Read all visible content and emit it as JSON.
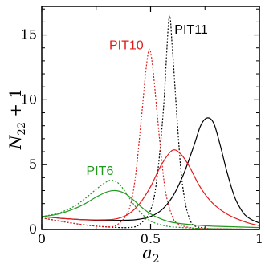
{
  "chart_data": {
    "type": "line",
    "title": "",
    "xlabel": "a2",
    "ylabel": "N22 + 1",
    "xlim": [
      0,
      1
    ],
    "ylim": [
      0,
      17.2
    ],
    "xticks": [
      {
        "value": 0,
        "label": "0"
      },
      {
        "value": 0.5,
        "label": "0.5"
      },
      {
        "value": 1,
        "label": "1"
      }
    ],
    "yticks": [
      {
        "value": 0,
        "label": "0"
      },
      {
        "value": 5,
        "label": "5"
      },
      {
        "value": 10,
        "label": "10"
      },
      {
        "value": 15,
        "label": "15"
      }
    ],
    "grid": false,
    "legend": "none",
    "series": [
      {
        "name": "PIT11",
        "color": "#000000",
        "style": "solid",
        "points": [
          [
            0,
            1.0
          ],
          [
            0.1,
            0.85
          ],
          [
            0.2,
            0.75
          ],
          [
            0.3,
            0.7
          ],
          [
            0.4,
            0.72
          ],
          [
            0.45,
            0.8
          ],
          [
            0.5,
            1.0
          ],
          [
            0.55,
            1.5
          ],
          [
            0.6,
            2.5
          ],
          [
            0.65,
            4.2
          ],
          [
            0.7,
            6.5
          ],
          [
            0.73,
            8.0
          ],
          [
            0.76,
            8.6
          ],
          [
            0.79,
            8.2
          ],
          [
            0.82,
            6.5
          ],
          [
            0.85,
            4.5
          ],
          [
            0.88,
            2.8
          ],
          [
            0.9,
            2.0
          ],
          [
            0.93,
            1.2
          ],
          [
            0.96,
            0.8
          ],
          [
            1.0,
            0.5
          ]
        ]
      },
      {
        "name": "PIT11",
        "color": "#000000",
        "style": "dotted",
        "points": [
          [
            0,
            0.9
          ],
          [
            0.1,
            0.6
          ],
          [
            0.2,
            0.35
          ],
          [
            0.3,
            0.2
          ],
          [
            0.4,
            0.15
          ],
          [
            0.45,
            0.4
          ],
          [
            0.5,
            1.5
          ],
          [
            0.53,
            4.0
          ],
          [
            0.56,
            9.5
          ],
          [
            0.585,
            16.3
          ],
          [
            0.6,
            14.0
          ],
          [
            0.62,
            9.0
          ],
          [
            0.64,
            4.5
          ],
          [
            0.66,
            2.0
          ],
          [
            0.68,
            0.8
          ],
          [
            0.7,
            0.3
          ],
          [
            0.75,
            0.1
          ],
          [
            0.8,
            0.05
          ],
          [
            1.0,
            0.02
          ]
        ]
      },
      {
        "name": "PIT10",
        "color": "#e31a1a",
        "style": "solid",
        "points": [
          [
            0,
            1.0
          ],
          [
            0.1,
            0.85
          ],
          [
            0.2,
            0.75
          ],
          [
            0.3,
            0.75
          ],
          [
            0.35,
            0.85
          ],
          [
            0.4,
            1.2
          ],
          [
            0.45,
            2.0
          ],
          [
            0.5,
            3.3
          ],
          [
            0.55,
            5.0
          ],
          [
            0.6,
            6.1
          ],
          [
            0.64,
            5.8
          ],
          [
            0.68,
            4.8
          ],
          [
            0.72,
            3.5
          ],
          [
            0.76,
            2.5
          ],
          [
            0.8,
            1.8
          ],
          [
            0.85,
            1.2
          ],
          [
            0.9,
            0.8
          ],
          [
            0.95,
            0.5
          ],
          [
            1.0,
            0.3
          ]
        ]
      },
      {
        "name": "PIT10",
        "color": "#e31a1a",
        "style": "dotted",
        "points": [
          [
            0,
            0.9
          ],
          [
            0.1,
            0.6
          ],
          [
            0.2,
            0.35
          ],
          [
            0.3,
            0.2
          ],
          [
            0.35,
            0.4
          ],
          [
            0.4,
            1.5
          ],
          [
            0.43,
            4.0
          ],
          [
            0.46,
            9.0
          ],
          [
            0.48,
            12.5
          ],
          [
            0.495,
            13.9
          ],
          [
            0.51,
            12.5
          ],
          [
            0.53,
            9.0
          ],
          [
            0.55,
            5.5
          ],
          [
            0.57,
            2.8
          ],
          [
            0.6,
            1.0
          ],
          [
            0.63,
            0.4
          ],
          [
            0.7,
            0.1
          ],
          [
            0.8,
            0.05
          ],
          [
            1.0,
            0.02
          ]
        ]
      },
      {
        "name": "PIT6",
        "color": "#1f9a1f",
        "style": "solid",
        "points": [
          [
            0,
            1.0
          ],
          [
            0.05,
            1.1
          ],
          [
            0.1,
            1.3
          ],
          [
            0.15,
            1.6
          ],
          [
            0.2,
            2.0
          ],
          [
            0.25,
            2.5
          ],
          [
            0.3,
            2.9
          ],
          [
            0.34,
            3.0
          ],
          [
            0.38,
            2.8
          ],
          [
            0.42,
            2.3
          ],
          [
            0.46,
            1.7
          ],
          [
            0.5,
            1.2
          ],
          [
            0.55,
            0.8
          ],
          [
            0.6,
            0.55
          ],
          [
            0.7,
            0.35
          ],
          [
            0.8,
            0.25
          ],
          [
            1.0,
            0.15
          ]
        ]
      },
      {
        "name": "PIT6",
        "color": "#1f9a1f",
        "style": "dotted",
        "points": [
          [
            0,
            1.0
          ],
          [
            0.05,
            1.15
          ],
          [
            0.1,
            1.4
          ],
          [
            0.15,
            1.8
          ],
          [
            0.2,
            2.4
          ],
          [
            0.25,
            3.1
          ],
          [
            0.29,
            3.6
          ],
          [
            0.32,
            3.8
          ],
          [
            0.35,
            3.6
          ],
          [
            0.38,
            3.0
          ],
          [
            0.42,
            2.0
          ],
          [
            0.46,
            1.2
          ],
          [
            0.5,
            0.65
          ],
          [
            0.55,
            0.35
          ],
          [
            0.6,
            0.2
          ],
          [
            0.7,
            0.1
          ],
          [
            0.8,
            0.05
          ],
          [
            1.0,
            0.02
          ]
        ]
      }
    ],
    "annotations": [
      {
        "text": "PIT11",
        "color": "#000000",
        "x": 0.61,
        "y": 15.1
      },
      {
        "text": "PIT10",
        "color": "#e31a1a",
        "x": 0.31,
        "y": 13.9
      },
      {
        "text": "PIT6",
        "color": "#1f9a1f",
        "x": 0.205,
        "y": 4.2
      }
    ]
  }
}
